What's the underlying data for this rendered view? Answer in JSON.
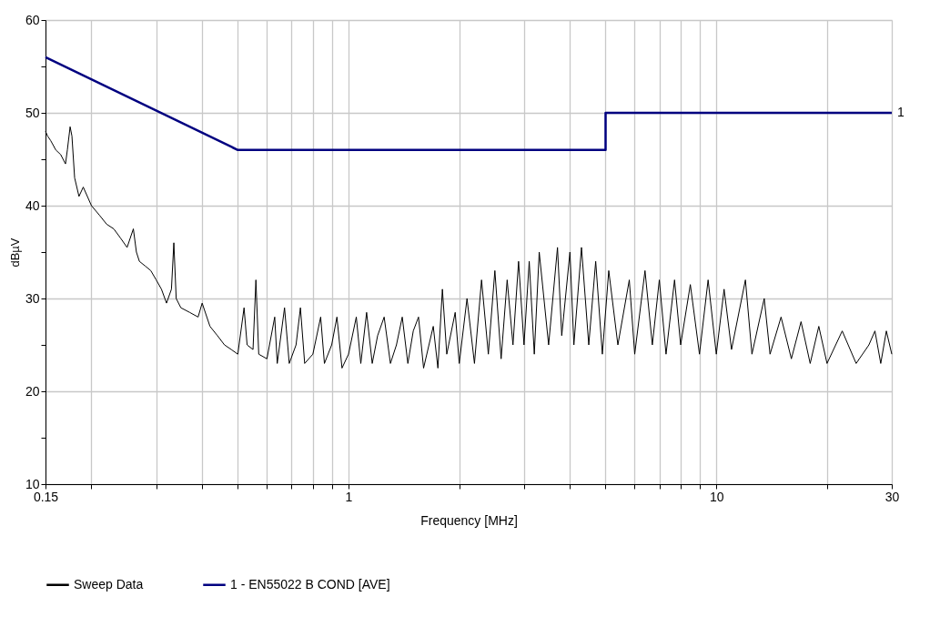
{
  "chart_data": {
    "type": "line",
    "xlabel": "Frequency [MHz]",
    "ylabel": "dBµV",
    "log": "x",
    "grid": true,
    "legend": "bottom",
    "line_style": "solid",
    "marker": "none",
    "xlim": [
      0.15,
      30
    ],
    "ylim": [
      10,
      60
    ],
    "xticks": [
      0.15,
      {
        "value": 0.2,
        "label": null
      },
      {
        "value": 0.3,
        "label": null
      },
      {
        "value": 0.4,
        "label": null
      },
      {
        "value": 0.5,
        "label": null
      },
      {
        "value": 0.6,
        "label": null
      },
      {
        "value": 0.7,
        "label": null
      },
      {
        "value": 0.8,
        "label": null
      },
      {
        "value": 0.9,
        "label": null
      },
      1,
      {
        "value": 2,
        "label": null
      },
      {
        "value": 3,
        "label": null
      },
      {
        "value": 4,
        "label": null
      },
      {
        "value": 5,
        "label": null
      },
      {
        "value": 6,
        "label": null
      },
      {
        "value": 7,
        "label": null
      },
      {
        "value": 8,
        "label": null
      },
      {
        "value": 9,
        "label": null
      },
      10,
      {
        "value": 20,
        "label": null
      },
      30
    ],
    "yticks": [
      10,
      {
        "value": 15,
        "label": null
      },
      20,
      {
        "value": 25,
        "label": null
      },
      30,
      {
        "value": 35,
        "label": null
      },
      40,
      {
        "value": 45,
        "label": null
      },
      50,
      {
        "value": 55,
        "label": null
      },
      60
    ],
    "annotations": [
      {
        "text": "1",
        "x": 30,
        "y": 50
      }
    ],
    "series": [
      {
        "name": "Sweep Data",
        "color": "#000000",
        "x": [
          0.15,
          0.152,
          0.155,
          0.16,
          0.165,
          0.17,
          0.172,
          0.175,
          0.177,
          0.18,
          0.185,
          0.19,
          0.2,
          0.21,
          0.22,
          0.23,
          0.24,
          0.25,
          0.26,
          0.265,
          0.27,
          0.28,
          0.29,
          0.3,
          0.31,
          0.32,
          0.33,
          0.335,
          0.34,
          0.35,
          0.37,
          0.39,
          0.4,
          0.42,
          0.44,
          0.46,
          0.48,
          0.5,
          0.52,
          0.53,
          0.55,
          0.56,
          0.57,
          0.6,
          0.63,
          0.64,
          0.67,
          0.69,
          0.72,
          0.74,
          0.76,
          0.8,
          0.84,
          0.86,
          0.9,
          0.93,
          0.96,
          1.0,
          1.05,
          1.08,
          1.12,
          1.16,
          1.2,
          1.25,
          1.3,
          1.35,
          1.4,
          1.45,
          1.5,
          1.55,
          1.6,
          1.7,
          1.75,
          1.8,
          1.85,
          1.95,
          2.0,
          2.1,
          2.2,
          2.3,
          2.4,
          2.5,
          2.6,
          2.7,
          2.8,
          2.9,
          3.0,
          3.1,
          3.2,
          3.3,
          3.5,
          3.7,
          3.8,
          4.0,
          4.1,
          4.3,
          4.5,
          4.7,
          4.9,
          5.1,
          5.4,
          5.8,
          6.0,
          6.4,
          6.7,
          7.0,
          7.3,
          7.7,
          8.0,
          8.5,
          9.0,
          9.5,
          10,
          10.5,
          11,
          12,
          12.5,
          13.5,
          14,
          15,
          16,
          17,
          18,
          19,
          20,
          22,
          24,
          26,
          27,
          28,
          29,
          30
        ],
        "values": [
          48,
          47.5,
          47,
          46,
          45.5,
          44.5,
          46,
          48.5,
          47.5,
          43,
          41,
          42,
          40,
          39,
          38,
          37.5,
          36.5,
          35.5,
          37.5,
          35,
          34,
          33.5,
          33,
          32,
          31,
          29.5,
          31,
          36,
          30,
          29,
          28.5,
          28,
          29.5,
          27,
          26,
          25,
          24.5,
          24,
          29,
          25,
          24.5,
          32,
          24,
          23.5,
          28,
          23,
          29,
          23,
          25,
          29,
          23,
          24,
          28,
          23,
          25,
          28,
          22.5,
          24,
          28,
          23,
          28.5,
          23,
          26,
          28,
          23,
          25,
          28,
          23,
          26.5,
          28,
          22.5,
          27,
          22.5,
          31,
          24,
          28.5,
          23,
          30,
          23,
          32,
          24,
          33,
          23.5,
          32,
          25,
          34,
          25,
          34,
          24,
          35,
          25,
          35.5,
          26,
          35,
          25,
          35.5,
          25,
          34,
          24,
          33,
          25,
          32,
          24,
          33,
          25,
          32,
          24,
          32,
          25,
          31.5,
          24,
          32,
          24,
          31,
          24.5,
          32,
          24,
          30,
          24,
          28,
          23.5,
          27.5,
          23,
          27,
          23,
          26.5,
          23,
          25,
          26.5,
          23,
          26.5,
          24
        ]
      },
      {
        "name": "1 - EN55022 B COND [AVE]",
        "color": "#000080",
        "x": [
          0.15,
          0.5,
          5,
          5,
          30
        ],
        "values": [
          56,
          46,
          46,
          50,
          50
        ]
      }
    ]
  }
}
